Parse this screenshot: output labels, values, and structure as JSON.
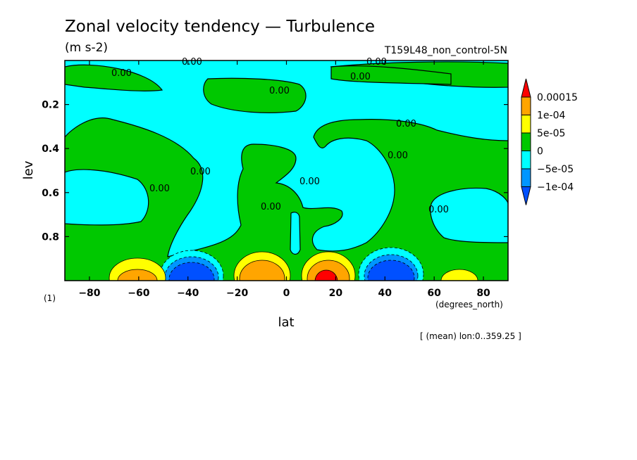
{
  "chart_data": {
    "type": "contour",
    "title": "Zonal velocity tendency — Turbulence",
    "units": "(m s-2)",
    "run_label": "T159L48_non_control-5N",
    "xlabel": "lat",
    "ylabel": "lev",
    "x_units": "(degrees_north)",
    "y_units": "(1)",
    "footnote": "[ (mean) lon:0..359.25 ]",
    "xlim": [
      -90,
      90
    ],
    "ylim": [
      1.0,
      0.0
    ],
    "xticks": [
      -80,
      -60,
      -40,
      -20,
      0,
      20,
      40,
      60,
      80
    ],
    "xtick_labels": [
      "−80",
      "−60",
      "−40",
      "−20",
      "0",
      "20",
      "40",
      "60",
      "80"
    ],
    "yticks": [
      0.2,
      0.4,
      0.6,
      0.8
    ],
    "ytick_labels": [
      "0.2",
      "0.4",
      "0.6",
      "0.8"
    ],
    "contour_label": "0.00",
    "colorbar": {
      "levels": [
        "0.00015",
        "1e-04",
        "5e-05",
        "0",
        "−5e-05",
        "−1e-04"
      ],
      "colors": [
        "#ff0000",
        "#ffa500",
        "#ffff00",
        "#00c800",
        "#00ffff",
        "#0096ff",
        "#0050ff"
      ]
    },
    "colors": {
      "positive": "#00c800",
      "negative": "#00ffff",
      "weak_positive": "#ffff00",
      "mid_positive": "#ffa500",
      "strong_positive": "#ff0000",
      "mid_negative": "#0096ff",
      "strong_negative": "#0050ff"
    },
    "extrema": [
      {
        "lat": -62,
        "lev": 0.98,
        "sign": "positive",
        "strength": "1e-04"
      },
      {
        "lat": -35,
        "lev": 0.97,
        "sign": "negative",
        "strength": "-1e-04"
      },
      {
        "lat": -12,
        "lev": 0.97,
        "sign": "positive",
        "strength": "1e-04"
      },
      {
        "lat": 15,
        "lev": 0.97,
        "sign": "positive",
        "strength": "0.00015"
      },
      {
        "lat": 43,
        "lev": 0.97,
        "sign": "negative",
        "strength": "-1e-04"
      },
      {
        "lat": 70,
        "lev": 0.98,
        "sign": "positive",
        "strength": "5e-05"
      }
    ]
  }
}
